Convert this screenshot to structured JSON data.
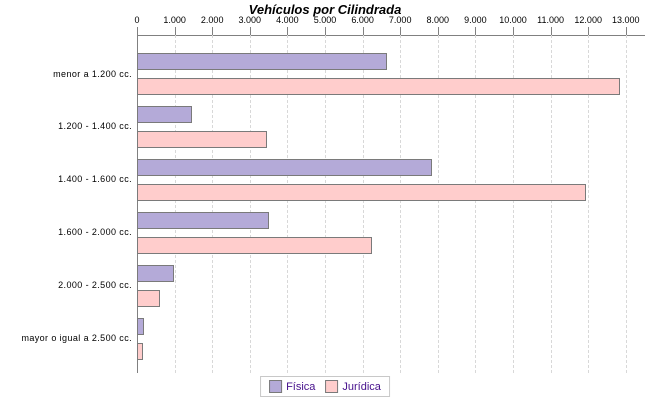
{
  "colors": {
    "fisica_fill": "#b4aad8",
    "juridica_fill": "#ffcdcc",
    "bar_border": "#7a7a7a",
    "gridline": "#d8d8d8",
    "axis": "#808080",
    "legend_text": "#46108c",
    "legend_border": "#c8c8c8",
    "title_text": "#000000"
  },
  "chart_data": {
    "type": "bar",
    "orientation": "horizontal",
    "title": "Vehículos por Cilindrada",
    "categories": [
      "menor a 1.200 cc.",
      "1.200 - 1.400 cc.",
      "1.400 - 1.600 cc.",
      "1.600 - 2.000 cc.",
      "2.000 - 2.500 cc.",
      "mayor o igual a 2.500 cc."
    ],
    "series": [
      {
        "name": "Física",
        "color": "#b4aad8",
        "values": [
          6600,
          1400,
          7800,
          3450,
          930,
          120
        ]
      },
      {
        "name": "Jurídica",
        "color": "#ffcdcc",
        "values": [
          12800,
          3400,
          11900,
          6200,
          570,
          110
        ]
      }
    ],
    "xlim": [
      0,
      13000
    ],
    "x_ticks": [
      0,
      1000,
      2000,
      3000,
      4000,
      5000,
      6000,
      7000,
      8000,
      9000,
      10000,
      11000,
      12000,
      13000
    ],
    "x_tick_labels": [
      "0",
      "1.000",
      "2.000",
      "3.000",
      "4.000",
      "5.000",
      "6.000",
      "7.000",
      "8.000",
      "9.000",
      "10.000",
      "11.000",
      "12.000",
      "13.000"
    ],
    "grid": "vertical-dashed",
    "axis_position": "top",
    "legend_position": "bottom-center"
  }
}
